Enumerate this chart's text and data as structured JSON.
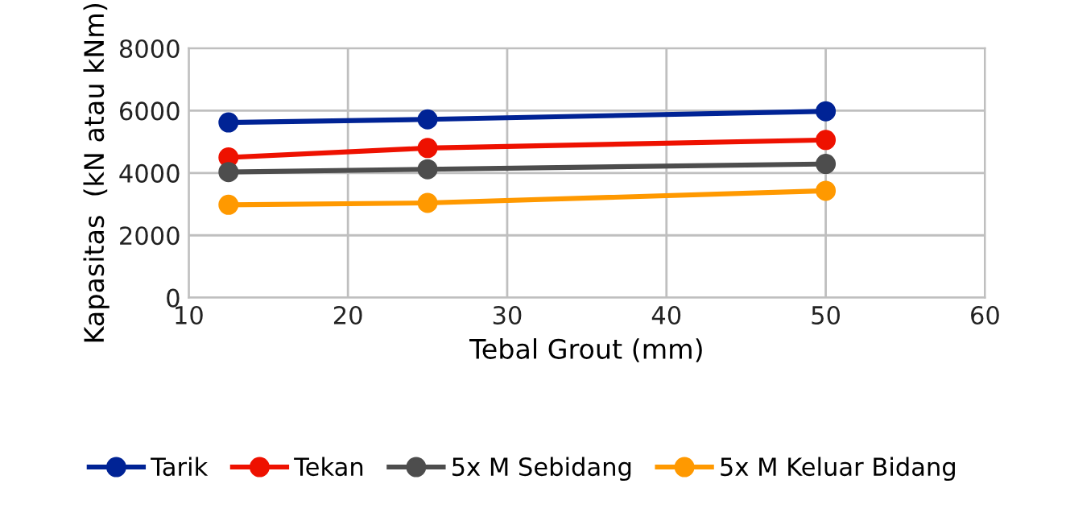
{
  "chart_data": {
    "type": "line",
    "xlabel": "Tebal Grout (mm)",
    "ylabel": "Kapasitas  (kN atau kNm)",
    "x": [
      12.5,
      25,
      50
    ],
    "series": [
      {
        "name": "Tarik",
        "color": "#002395",
        "values": [
          5620,
          5720,
          5980
        ]
      },
      {
        "name": "Tekan",
        "color": "#ee1100",
        "values": [
          4500,
          4800,
          5060
        ]
      },
      {
        "name": "5x M Sebidang",
        "color": "#4d4d4d",
        "values": [
          4030,
          4120,
          4290
        ]
      },
      {
        "name": "5x M Keluar Bidang",
        "color": "#ff9900",
        "values": [
          2980,
          3040,
          3430
        ]
      }
    ],
    "xlim": [
      10,
      60
    ],
    "xticks": [
      10,
      20,
      30,
      40,
      50,
      60
    ],
    "ylim": [
      0,
      8000
    ],
    "yticks": [
      0,
      2000,
      4000,
      6000,
      8000
    ],
    "grid": true,
    "legend": "bottom",
    "marker": "circle",
    "line_style": "solid"
  }
}
